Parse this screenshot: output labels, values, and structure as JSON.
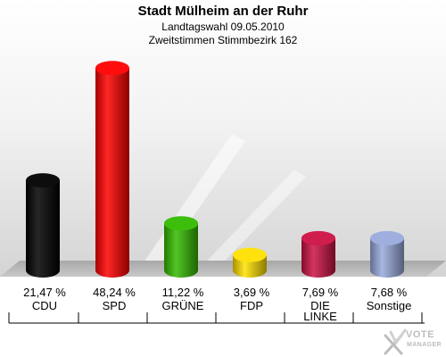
{
  "header": {
    "title": "Stadt Mülheim an der Ruhr",
    "subtitle1": "Landtagswahl 09.05.2010",
    "subtitle2": "Zweitstimmen Stimmbezirk 162"
  },
  "chart_data": {
    "type": "bar",
    "title": "Stadt Mülheim an der Ruhr",
    "categories": [
      "CDU",
      "SPD",
      "GRÜNE",
      "FDP",
      "DIE LINKE",
      "Sonstige"
    ],
    "values": [
      21.47,
      48.24,
      11.22,
      3.69,
      7.69,
      7.68
    ],
    "value_labels": [
      "21,47 %",
      "48,24 %",
      "11,22 %",
      "3,69 %",
      "7,69 %",
      "7,68 %"
    ],
    "colors": [
      "#000000",
      "#ff0000",
      "#33bb00",
      "#ffe000",
      "#cc1144",
      "#99aadd"
    ],
    "ylim": [
      0,
      50
    ],
    "grid": false,
    "legend": "none"
  },
  "logo": {
    "name": "votemanager-logo",
    "text1": "VOTE",
    "text2": "MANAGER"
  }
}
